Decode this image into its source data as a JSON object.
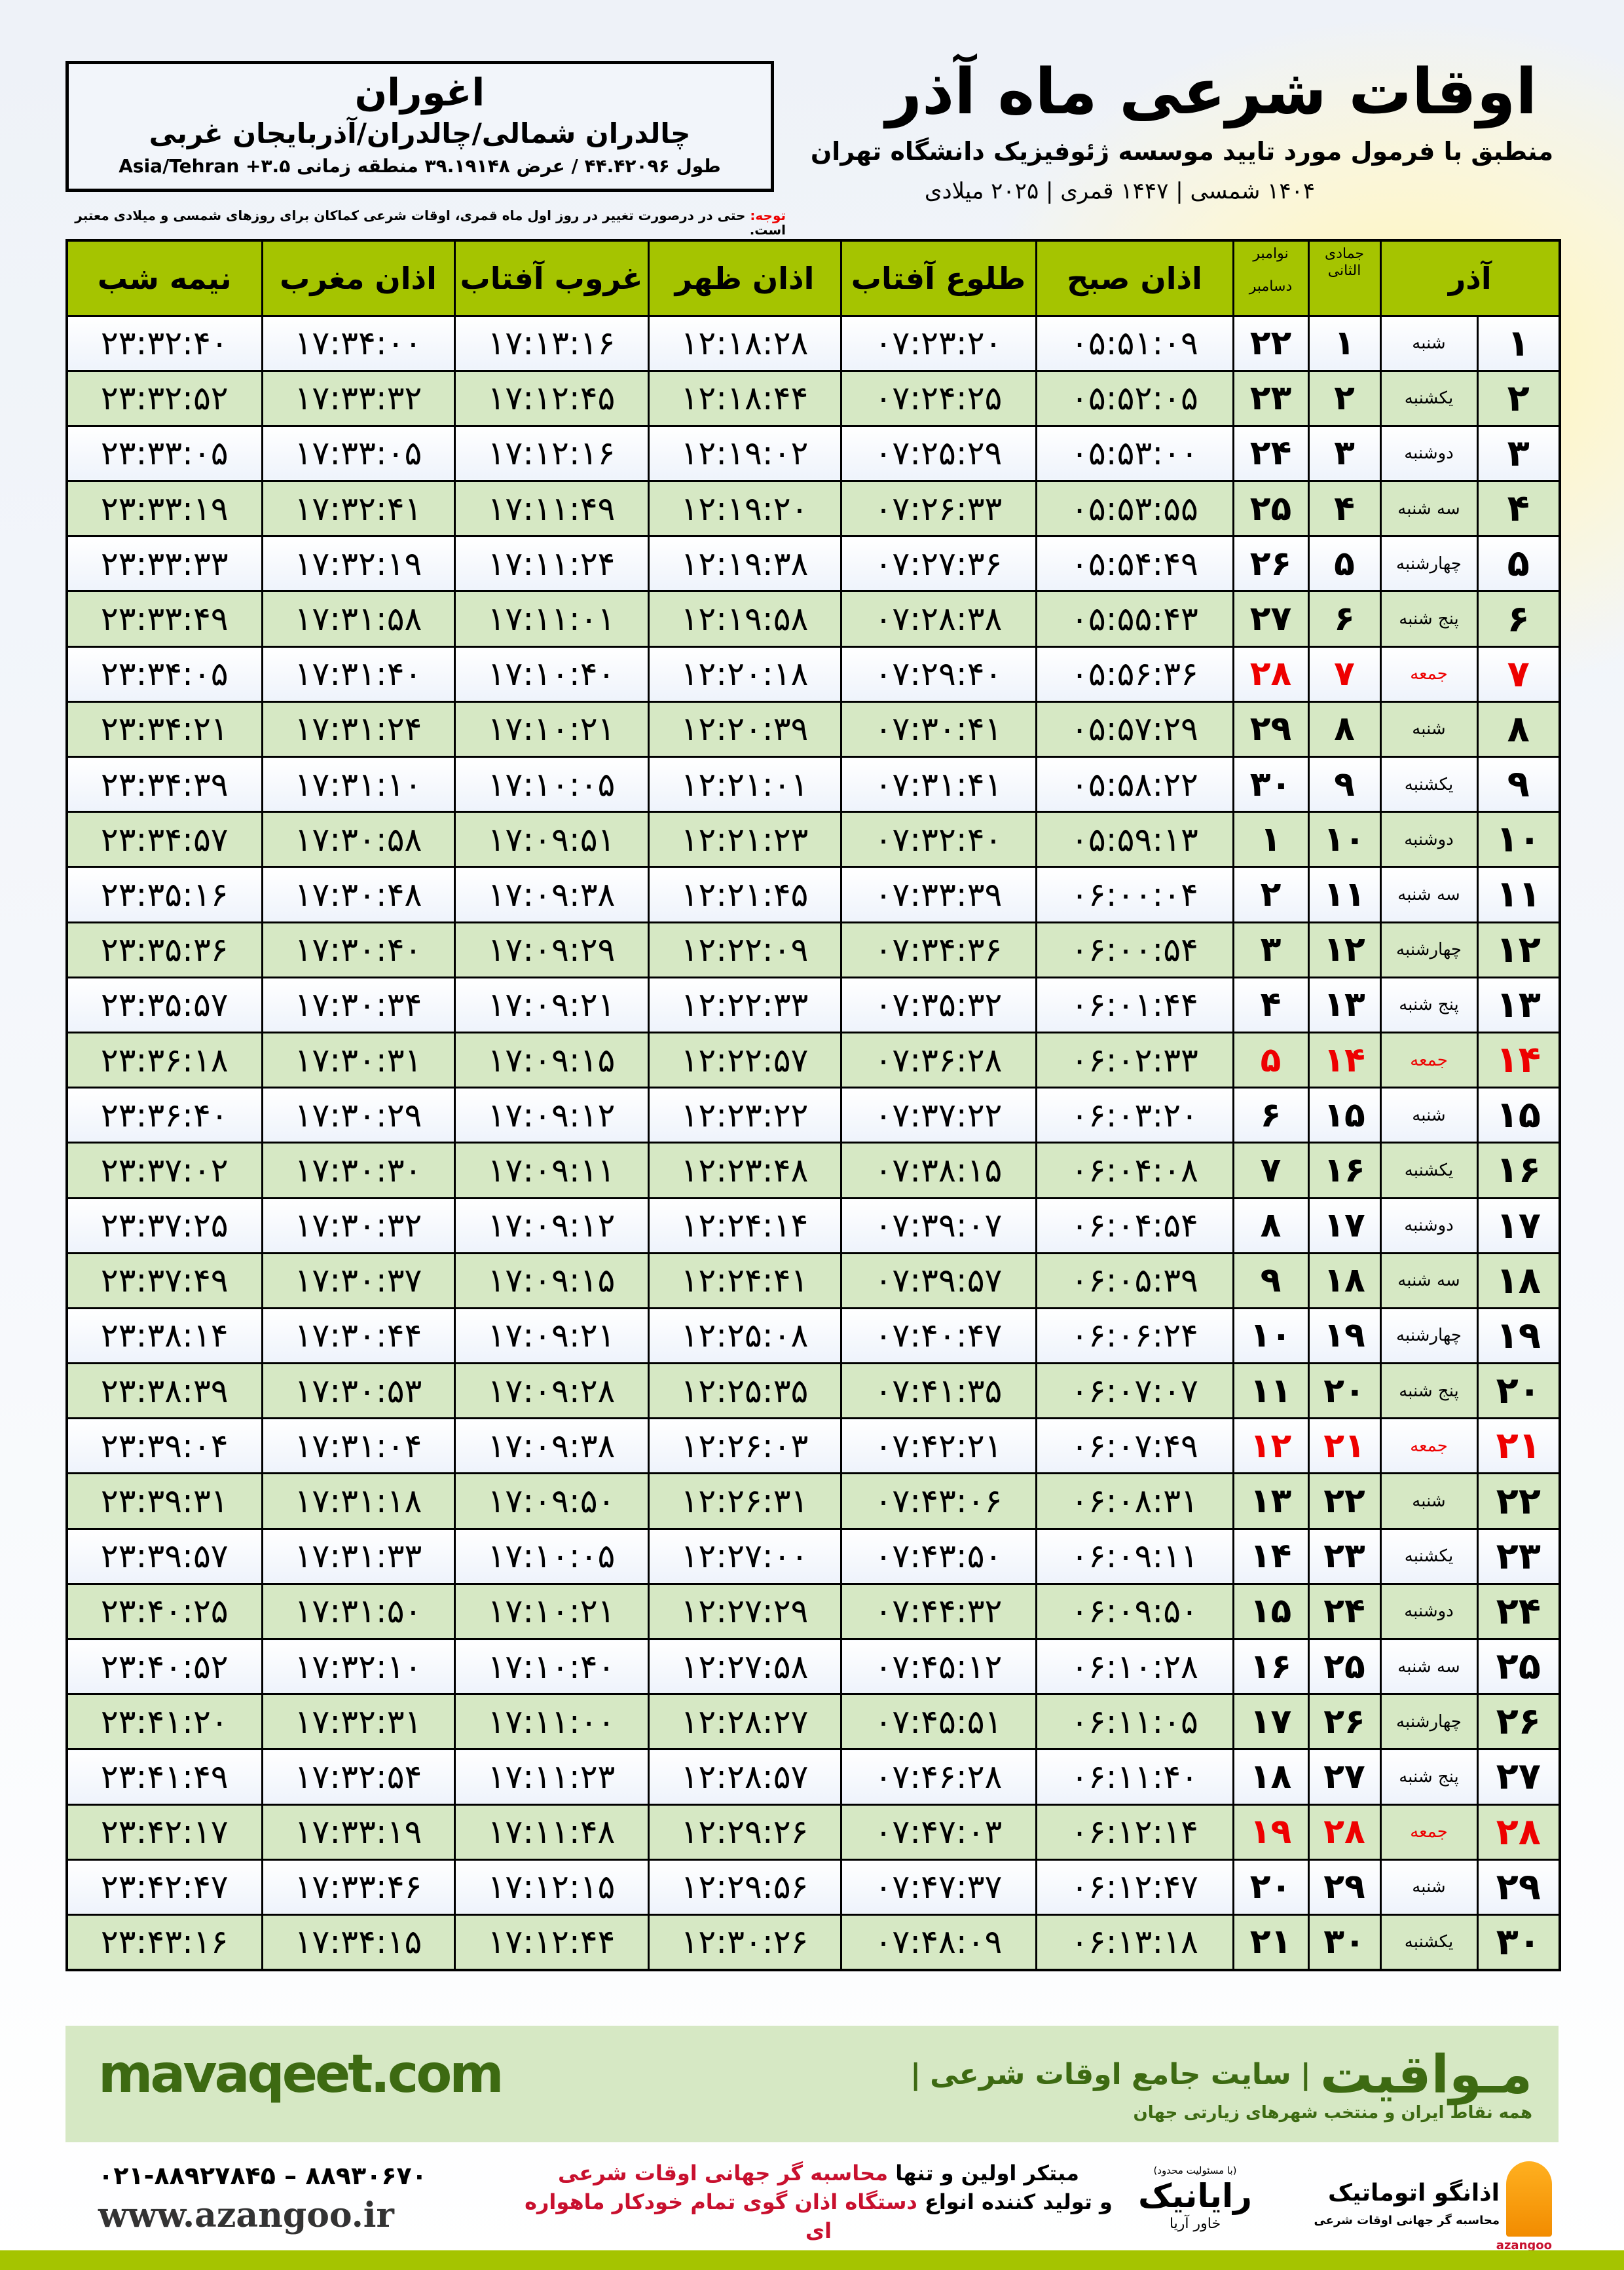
{
  "location": {
    "name": "اغوران",
    "region": "چالدران شمالی/چالدران/آذربایجان غربی",
    "coords": "طول ۴۴.۴۲۰۹۶ / عرض ۳۹.۱۹۱۴۸ منطقه زمانی ۳.۵+ Asia/Tehran"
  },
  "header": {
    "title": "اوقات شرعی ماه آذر",
    "subtitle": "منطبق با فرمول مورد تایید موسسه ژئوفیزیک دانشگاه تهران",
    "dates": "۱۴۰۴ شمسی | ۱۴۴۷ قمری | ۲۰۲۵ میلادی"
  },
  "note": {
    "label": "توجه:",
    "text": " حتی در درصورت تغییر در روز اول ماه قمری، اوقات شرعی کماکان برای روزهای شمسی و میلادی معتبر است."
  },
  "table": {
    "columns": {
      "month": "آذر",
      "hijri": "جمادی الثانی",
      "greg_top": "نوامبر",
      "greg_bottom": "دسامبر",
      "sobh": "اذان صبح",
      "tolu": "طلوع آفتاب",
      "zohr": "اذان ظهر",
      "ghorub": "غروب آفتاب",
      "maghreb": "اذان مغرب",
      "nimeh": "نیمه شب"
    },
    "friday_color": "#e00000",
    "header_color": "#a5c400",
    "rows": [
      [
        "۱",
        "شنبه",
        "۱",
        "۲۲",
        "۰۵:۵۱:۰۹",
        "۰۷:۲۳:۲۰",
        "۱۲:۱۸:۲۸",
        "۱۷:۱۳:۱۶",
        "۱۷:۳۴:۰۰",
        "۲۳:۳۲:۴۰",
        false
      ],
      [
        "۲",
        "یکشنبه",
        "۲",
        "۲۳",
        "۰۵:۵۲:۰۵",
        "۰۷:۲۴:۲۵",
        "۱۲:۱۸:۴۴",
        "۱۷:۱۲:۴۵",
        "۱۷:۳۳:۳۲",
        "۲۳:۳۲:۵۲",
        false
      ],
      [
        "۳",
        "دوشنبه",
        "۳",
        "۲۴",
        "۰۵:۵۳:۰۰",
        "۰۷:۲۵:۲۹",
        "۱۲:۱۹:۰۲",
        "۱۷:۱۲:۱۶",
        "۱۷:۳۳:۰۵",
        "۲۳:۳۳:۰۵",
        false
      ],
      [
        "۴",
        "سه شنبه",
        "۴",
        "۲۵",
        "۰۵:۵۳:۵۵",
        "۰۷:۲۶:۳۳",
        "۱۲:۱۹:۲۰",
        "۱۷:۱۱:۴۹",
        "۱۷:۳۲:۴۱",
        "۲۳:۳۳:۱۹",
        false
      ],
      [
        "۵",
        "چهارشنبه",
        "۵",
        "۲۶",
        "۰۵:۵۴:۴۹",
        "۰۷:۲۷:۳۶",
        "۱۲:۱۹:۳۸",
        "۱۷:۱۱:۲۴",
        "۱۷:۳۲:۱۹",
        "۲۳:۳۳:۳۳",
        false
      ],
      [
        "۶",
        "پنج شنبه",
        "۶",
        "۲۷",
        "۰۵:۵۵:۴۳",
        "۰۷:۲۸:۳۸",
        "۱۲:۱۹:۵۸",
        "۱۷:۱۱:۰۱",
        "۱۷:۳۱:۵۸",
        "۲۳:۳۳:۴۹",
        false
      ],
      [
        "۷",
        "جمعه",
        "۷",
        "۲۸",
        "۰۵:۵۶:۳۶",
        "۰۷:۲۹:۴۰",
        "۱۲:۲۰:۱۸",
        "۱۷:۱۰:۴۰",
        "۱۷:۳۱:۴۰",
        "۲۳:۳۴:۰۵",
        true
      ],
      [
        "۸",
        "شنبه",
        "۸",
        "۲۹",
        "۰۵:۵۷:۲۹",
        "۰۷:۳۰:۴۱",
        "۱۲:۲۰:۳۹",
        "۱۷:۱۰:۲۱",
        "۱۷:۳۱:۲۴",
        "۲۳:۳۴:۲۱",
        false
      ],
      [
        "۹",
        "یکشنبه",
        "۹",
        "۳۰",
        "۰۵:۵۸:۲۲",
        "۰۷:۳۱:۴۱",
        "۱۲:۲۱:۰۱",
        "۱۷:۱۰:۰۵",
        "۱۷:۳۱:۱۰",
        "۲۳:۳۴:۳۹",
        false
      ],
      [
        "۱۰",
        "دوشنبه",
        "۱۰",
        "۱",
        "۰۵:۵۹:۱۳",
        "۰۷:۳۲:۴۰",
        "۱۲:۲۱:۲۳",
        "۱۷:۰۹:۵۱",
        "۱۷:۳۰:۵۸",
        "۲۳:۳۴:۵۷",
        false
      ],
      [
        "۱۱",
        "سه شنبه",
        "۱۱",
        "۲",
        "۰۶:۰۰:۰۴",
        "۰۷:۳۳:۳۹",
        "۱۲:۲۱:۴۵",
        "۱۷:۰۹:۳۸",
        "۱۷:۳۰:۴۸",
        "۲۳:۳۵:۱۶",
        false
      ],
      [
        "۱۲",
        "چهارشنبه",
        "۱۲",
        "۳",
        "۰۶:۰۰:۵۴",
        "۰۷:۳۴:۳۶",
        "۱۲:۲۲:۰۹",
        "۱۷:۰۹:۲۹",
        "۱۷:۳۰:۴۰",
        "۲۳:۳۵:۳۶",
        false
      ],
      [
        "۱۳",
        "پنج شنبه",
        "۱۳",
        "۴",
        "۰۶:۰۱:۴۴",
        "۰۷:۳۵:۳۲",
        "۱۲:۲۲:۳۳",
        "۱۷:۰۹:۲۱",
        "۱۷:۳۰:۳۴",
        "۲۳:۳۵:۵۷",
        false
      ],
      [
        "۱۴",
        "جمعه",
        "۱۴",
        "۵",
        "۰۶:۰۲:۳۳",
        "۰۷:۳۶:۲۸",
        "۱۲:۲۲:۵۷",
        "۱۷:۰۹:۱۵",
        "۱۷:۳۰:۳۱",
        "۲۳:۳۶:۱۸",
        true
      ],
      [
        "۱۵",
        "شنبه",
        "۱۵",
        "۶",
        "۰۶:۰۳:۲۰",
        "۰۷:۳۷:۲۲",
        "۱۲:۲۳:۲۲",
        "۱۷:۰۹:۱۲",
        "۱۷:۳۰:۲۹",
        "۲۳:۳۶:۴۰",
        false
      ],
      [
        "۱۶",
        "یکشنبه",
        "۱۶",
        "۷",
        "۰۶:۰۴:۰۸",
        "۰۷:۳۸:۱۵",
        "۱۲:۲۳:۴۸",
        "۱۷:۰۹:۱۱",
        "۱۷:۳۰:۳۰",
        "۲۳:۳۷:۰۲",
        false
      ],
      [
        "۱۷",
        "دوشنبه",
        "۱۷",
        "۸",
        "۰۶:۰۴:۵۴",
        "۰۷:۳۹:۰۷",
        "۱۲:۲۴:۱۴",
        "۱۷:۰۹:۱۲",
        "۱۷:۳۰:۳۲",
        "۲۳:۳۷:۲۵",
        false
      ],
      [
        "۱۸",
        "سه شنبه",
        "۱۸",
        "۹",
        "۰۶:۰۵:۳۹",
        "۰۷:۳۹:۵۷",
        "۱۲:۲۴:۴۱",
        "۱۷:۰۹:۱۵",
        "۱۷:۳۰:۳۷",
        "۲۳:۳۷:۴۹",
        false
      ],
      [
        "۱۹",
        "چهارشنبه",
        "۱۹",
        "۱۰",
        "۰۶:۰۶:۲۴",
        "۰۷:۴۰:۴۷",
        "۱۲:۲۵:۰۸",
        "۱۷:۰۹:۲۱",
        "۱۷:۳۰:۴۴",
        "۲۳:۳۸:۱۴",
        false
      ],
      [
        "۲۰",
        "پنج شنبه",
        "۲۰",
        "۱۱",
        "۰۶:۰۷:۰۷",
        "۰۷:۴۱:۳۵",
        "۱۲:۲۵:۳۵",
        "۱۷:۰۹:۲۸",
        "۱۷:۳۰:۵۳",
        "۲۳:۳۸:۳۹",
        false
      ],
      [
        "۲۱",
        "جمعه",
        "۲۱",
        "۱۲",
        "۰۶:۰۷:۴۹",
        "۰۷:۴۲:۲۱",
        "۱۲:۲۶:۰۳",
        "۱۷:۰۹:۳۸",
        "۱۷:۳۱:۰۴",
        "۲۳:۳۹:۰۴",
        true
      ],
      [
        "۲۲",
        "شنبه",
        "۲۲",
        "۱۳",
        "۰۶:۰۸:۳۱",
        "۰۷:۴۳:۰۶",
        "۱۲:۲۶:۳۱",
        "۱۷:۰۹:۵۰",
        "۱۷:۳۱:۱۸",
        "۲۳:۳۹:۳۱",
        false
      ],
      [
        "۲۳",
        "یکشنبه",
        "۲۳",
        "۱۴",
        "۰۶:۰۹:۱۱",
        "۰۷:۴۳:۵۰",
        "۱۲:۲۷:۰۰",
        "۱۷:۱۰:۰۵",
        "۱۷:۳۱:۳۳",
        "۲۳:۳۹:۵۷",
        false
      ],
      [
        "۲۴",
        "دوشنبه",
        "۲۴",
        "۱۵",
        "۰۶:۰۹:۵۰",
        "۰۷:۴۴:۳۲",
        "۱۲:۲۷:۲۹",
        "۱۷:۱۰:۲۱",
        "۱۷:۳۱:۵۰",
        "۲۳:۴۰:۲۵",
        false
      ],
      [
        "۲۵",
        "سه شنبه",
        "۲۵",
        "۱۶",
        "۰۶:۱۰:۲۸",
        "۰۷:۴۵:۱۲",
        "۱۲:۲۷:۵۸",
        "۱۷:۱۰:۴۰",
        "۱۷:۳۲:۱۰",
        "۲۳:۴۰:۵۲",
        false
      ],
      [
        "۲۶",
        "چهارشنبه",
        "۲۶",
        "۱۷",
        "۰۶:۱۱:۰۵",
        "۰۷:۴۵:۵۱",
        "۱۲:۲۸:۲۷",
        "۱۷:۱۱:۰۰",
        "۱۷:۳۲:۳۱",
        "۲۳:۴۱:۲۰",
        false
      ],
      [
        "۲۷",
        "پنج شنبه",
        "۲۷",
        "۱۸",
        "۰۶:۱۱:۴۰",
        "۰۷:۴۶:۲۸",
        "۱۲:۲۸:۵۷",
        "۱۷:۱۱:۲۳",
        "۱۷:۳۲:۵۴",
        "۲۳:۴۱:۴۹",
        false
      ],
      [
        "۲۸",
        "جمعه",
        "۲۸",
        "۱۹",
        "۰۶:۱۲:۱۴",
        "۰۷:۴۷:۰۳",
        "۱۲:۲۹:۲۶",
        "۱۷:۱۱:۴۸",
        "۱۷:۳۳:۱۹",
        "۲۳:۴۲:۱۷",
        true
      ],
      [
        "۲۹",
        "شنبه",
        "۲۹",
        "۲۰",
        "۰۶:۱۲:۴۷",
        "۰۷:۴۷:۳۷",
        "۱۲:۲۹:۵۶",
        "۱۷:۱۲:۱۵",
        "۱۷:۳۳:۴۶",
        "۲۳:۴۲:۴۷",
        false
      ],
      [
        "۳۰",
        "یکشنبه",
        "۳۰",
        "۲۱",
        "۰۶:۱۳:۱۸",
        "۰۷:۴۸:۰۹",
        "۱۲:۳۰:۲۶",
        "۱۷:۱۲:۴۴",
        "۱۷:۳۴:۱۵",
        "۲۳:۴۳:۱۶",
        false
      ]
    ]
  },
  "banner": {
    "brand": "مـواقیت",
    "sep": "|",
    "tagline": "سایت جامع اوقات شرعی",
    "sub": "همه نقاط ایران و منتخب شهرهای زیارتی جهان",
    "site": "mavaqeet.com"
  },
  "footer": {
    "line1a": "مبتکر اولین و تنها ",
    "line1b": "محاسبه گر جهانی اوقات شرعی",
    "line2a": "و تولید کننده انواع ",
    "line2b": "دستگاه اذان گوی تمام خودکار ماهواره ای",
    "phone": "۰۲۱-۸۸۹۲۷۸۴۵ – ۸۸۹۳۰۶۷۰",
    "web": "www.azangoo.ir",
    "logo_raianik": {
      "small": "(با مسئولیت محدود)",
      "name": "رایانیک",
      "sub": "خاور آریا"
    },
    "logo_azangoo": {
      "name": "اذانگو اتوماتیک",
      "sub": "محاسبه گر جهانی اوقات شرعی",
      "latin": "azangoo"
    }
  }
}
